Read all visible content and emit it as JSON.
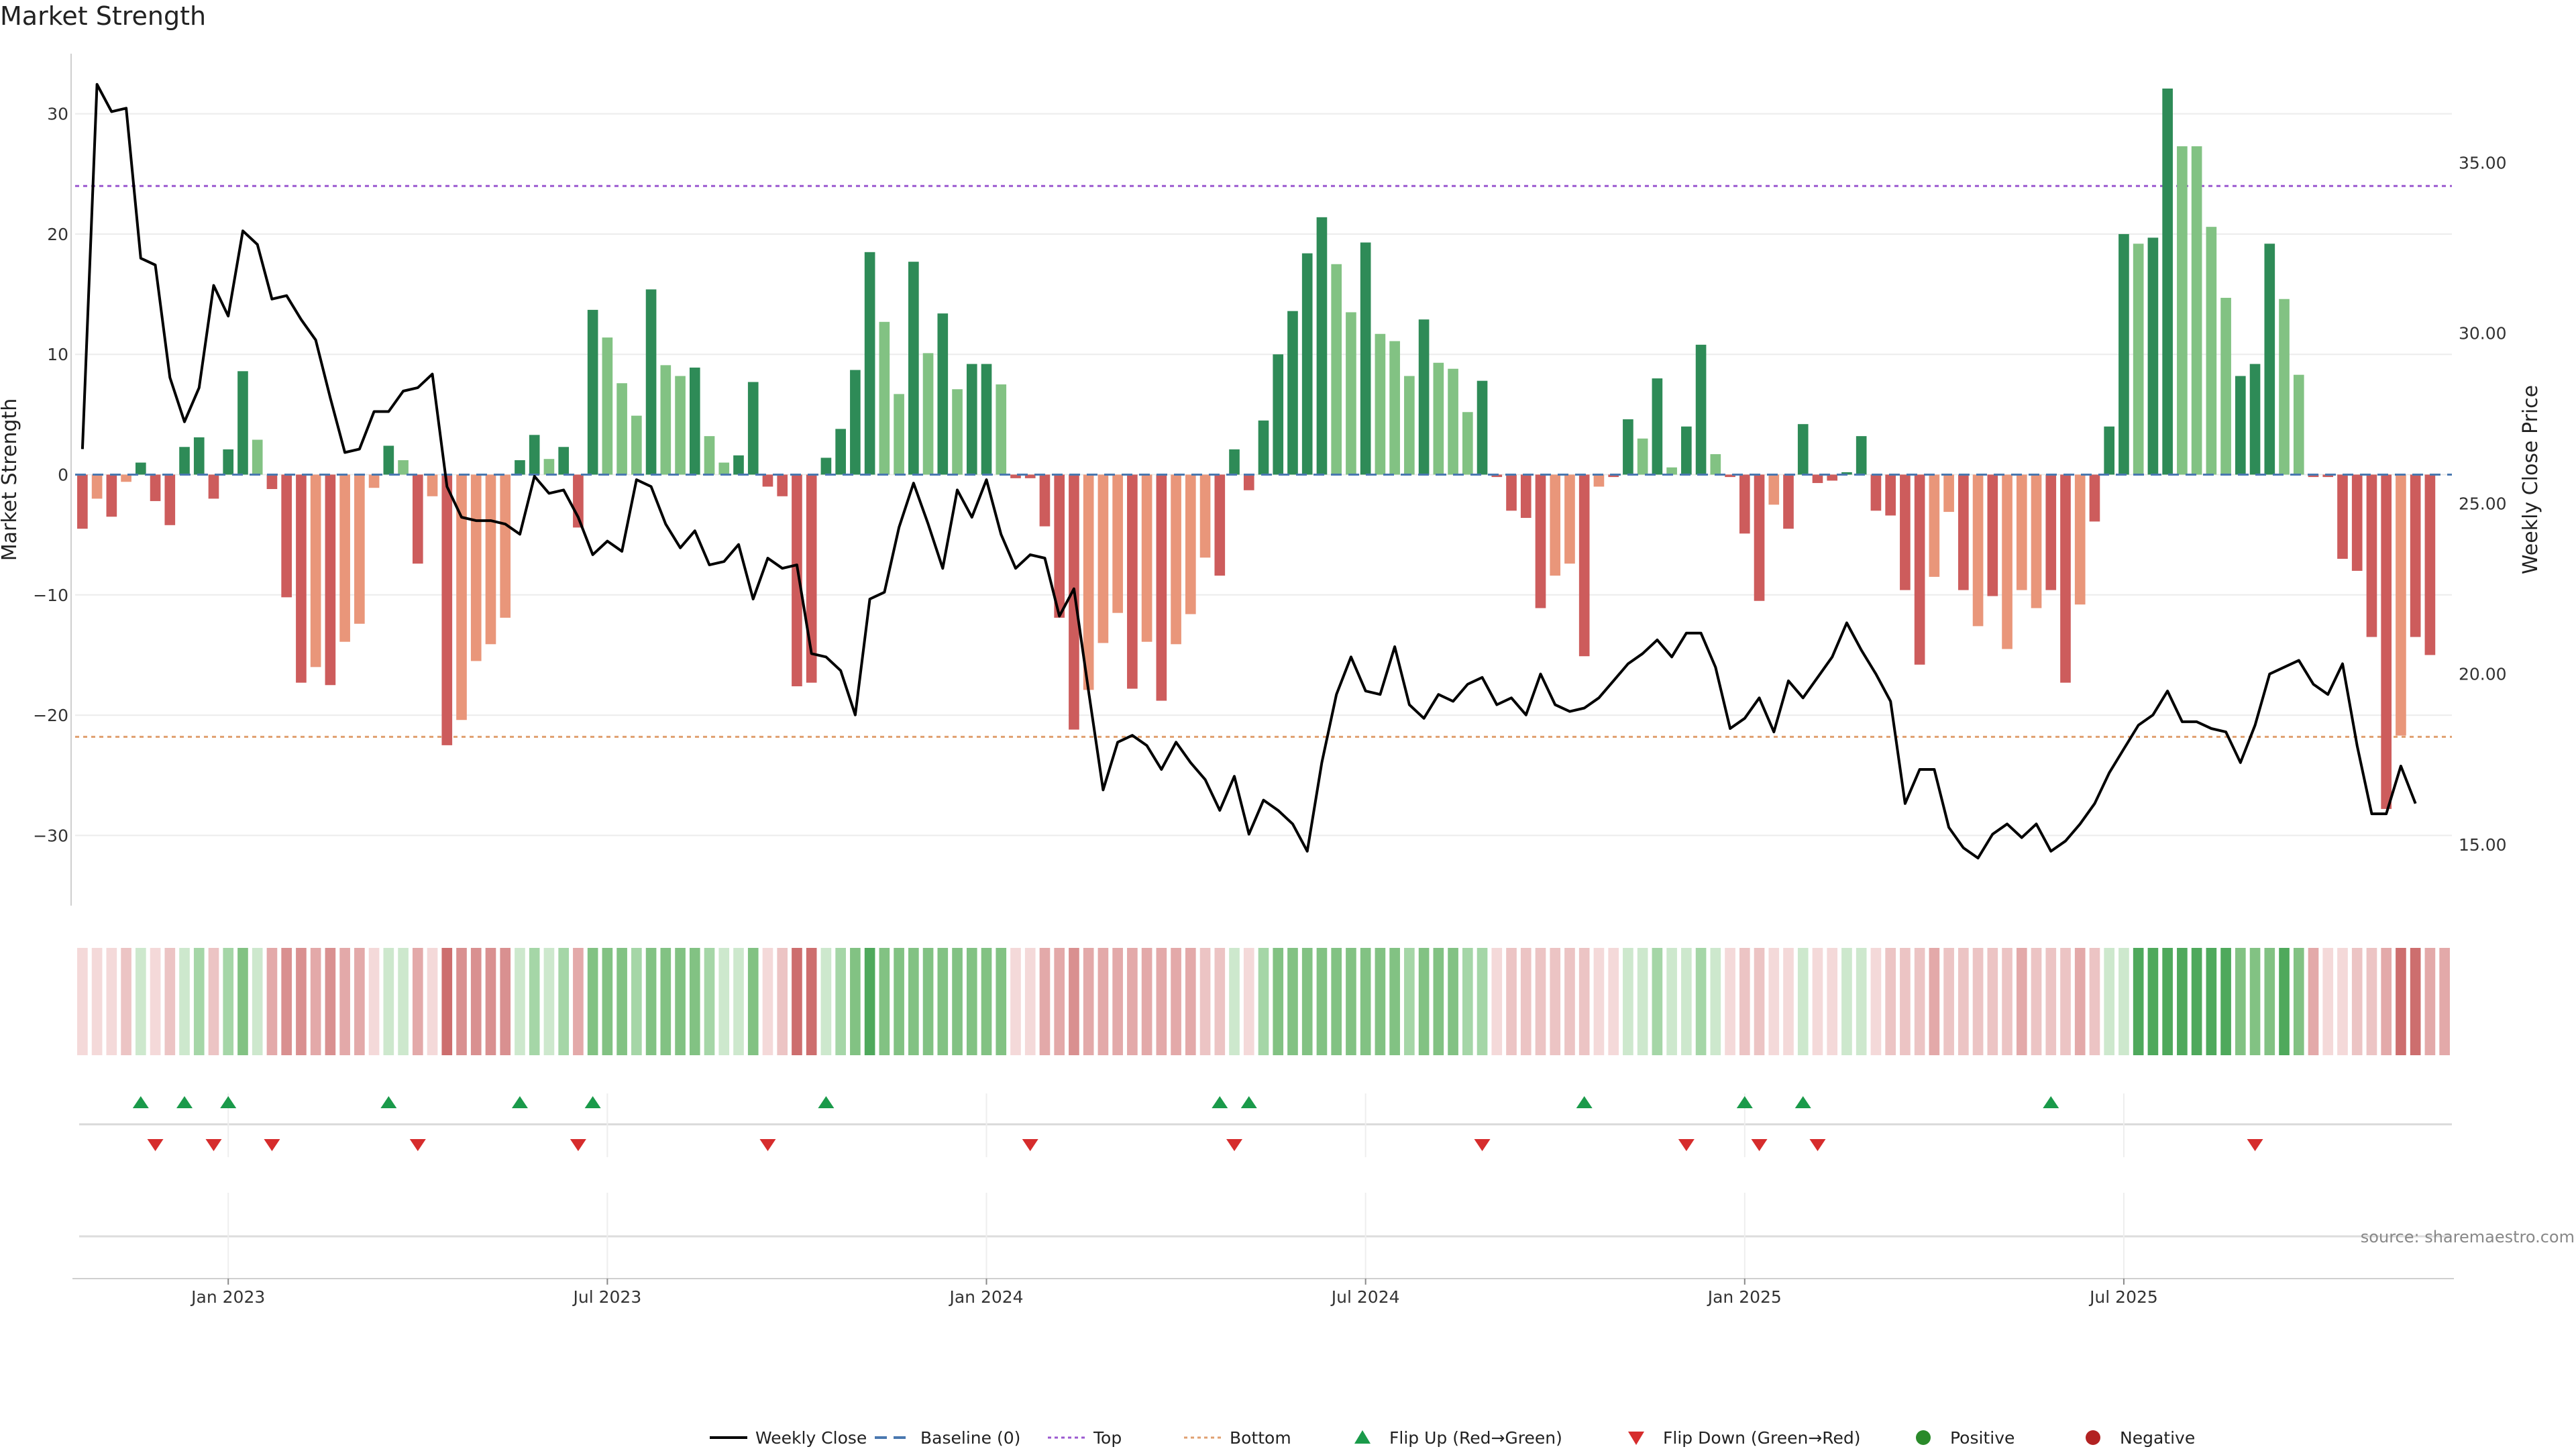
{
  "title": "Market Strength",
  "source": "source: sharemaestro.com",
  "colors": {
    "strong_green": "#2e8b57",
    "light_green": "#82c283",
    "strong_red": "#cd5c5c",
    "light_red": "#e9967a",
    "top_line": "#9b59d0",
    "bottom_line": "#e0a070",
    "baseline": "#4a78b0",
    "flip_up": "#1a9a4a",
    "flip_down": "#d62c2c",
    "positive": "#2a8a2a",
    "negative": "#b22222",
    "price_line": "#000000"
  },
  "chart_data": {
    "type": "bar",
    "title": "Market Strength",
    "ylabel": "Market Strength",
    "y2label": "Weekly Close Price",
    "ylim": [
      -35,
      35
    ],
    "y2lim": [
      13.5,
      38.2
    ],
    "yticks": [
      "30",
      "20",
      "10",
      "0",
      "−10",
      "−20",
      "−30"
    ],
    "y2ticks": [
      "35.00",
      "30.00",
      "25.00",
      "20.00",
      "15.00"
    ],
    "xticks": [
      {
        "label": "Jan 2023",
        "week": 10
      },
      {
        "label": "Jul 2023",
        "week": 36
      },
      {
        "label": "Jan 2024",
        "week": 62
      },
      {
        "label": "Jul 2024",
        "week": 88
      },
      {
        "label": "Jan 2025",
        "week": 114
      },
      {
        "label": "Jul 2025",
        "week": 140
      }
    ],
    "top_level": 24,
    "bottom_level": -21.8,
    "strength": [
      -4.5,
      -2,
      -3.5,
      -0.6,
      1,
      -2.2,
      -4.2,
      2.3,
      3.1,
      -2,
      2.1,
      8.6,
      2.9,
      -1.2,
      -10.2,
      -17.3,
      -16,
      -17.5,
      -13.9,
      -12.4,
      -1.1,
      2.4,
      1.2,
      -7.4,
      -1.8,
      -22.5,
      -20.4,
      -15.5,
      -14.1,
      -11.9,
      1.2,
      3.3,
      1.3,
      2.3,
      -4.4,
      13.7,
      11.4,
      7.6,
      4.9,
      15.4,
      9.1,
      8.2,
      8.9,
      3.2,
      1,
      1.6,
      7.7,
      -1,
      -1.8,
      -17.6,
      -17.3,
      1.4,
      3.8,
      8.7,
      18.5,
      12.7,
      6.7,
      17.7,
      10.1,
      13.4,
      7.1,
      9.2,
      9.2,
      7.5,
      -0.3,
      -0.3,
      -4.3,
      -11.9,
      -21.2,
      -17.9,
      -14,
      -11.5,
      -17.8,
      -13.9,
      -18.8,
      -14.1,
      -11.6,
      -6.9,
      -8.4,
      2.1,
      -1.3,
      4.5,
      10,
      13.6,
      18.4,
      21.4,
      17.5,
      13.5,
      19.3,
      11.7,
      11.1,
      8.2,
      12.9,
      9.3,
      8.8,
      5.2,
      7.8,
      -0.2,
      -3,
      -3.6,
      -11.1,
      -8.4,
      -7.4,
      -15.1,
      -1,
      -0.2,
      4.6,
      3,
      8,
      0.6,
      4,
      10.8,
      1.7,
      -0.2,
      -4.9,
      -10.5,
      -2.5,
      -4.5,
      4.2,
      -0.7,
      -0.5,
      0.2,
      3.2,
      -3,
      -3.4,
      -9.6,
      -15.8,
      -8.5,
      -3.1,
      -9.6,
      -12.6,
      -10.1,
      -14.5,
      -9.6,
      -11.1,
      -9.6,
      -17.3,
      -10.8,
      -3.9,
      4,
      20,
      19.2,
      19.7,
      32.1,
      27.3,
      27.3,
      20.6,
      14.7,
      8.2,
      9.2,
      19.2,
      14.6,
      8.3,
      -0.2,
      -0.2,
      -7,
      -8,
      -13.5,
      -27.8,
      -21.7,
      -13.5,
      -15
    ],
    "strength_shade": [
      "s",
      "l",
      "s",
      "l",
      "s",
      "s",
      "s",
      "s",
      "s",
      "s",
      "s",
      "s",
      "l",
      "s",
      "s",
      "s",
      "l",
      "s",
      "l",
      "l",
      "l",
      "s",
      "l",
      "s",
      "l",
      "s",
      "l",
      "l",
      "l",
      "l",
      "s",
      "s",
      "l",
      "s",
      "s",
      "s",
      "l",
      "l",
      "l",
      "s",
      "l",
      "l",
      "s",
      "l",
      "l",
      "s",
      "s",
      "s",
      "s",
      "s",
      "s",
      "s",
      "s",
      "s",
      "s",
      "l",
      "l",
      "s",
      "l",
      "s",
      "l",
      "s",
      "s",
      "l",
      "s",
      "s",
      "s",
      "s",
      "s",
      "l",
      "l",
      "l",
      "s",
      "l",
      "s",
      "l",
      "l",
      "l",
      "s",
      "s",
      "s",
      "s",
      "s",
      "s",
      "s",
      "s",
      "l",
      "l",
      "s",
      "l",
      "l",
      "l",
      "s",
      "l",
      "l",
      "l",
      "s",
      "s",
      "s",
      "s",
      "s",
      "l",
      "l",
      "s",
      "l",
      "s",
      "s",
      "l",
      "s",
      "l",
      "s",
      "s",
      "l",
      "s",
      "s",
      "s",
      "l",
      "s",
      "s",
      "s",
      "s",
      "s",
      "s",
      "s",
      "s",
      "s",
      "s",
      "l",
      "l",
      "s",
      "l",
      "s",
      "l",
      "l",
      "l",
      "s",
      "s",
      "l",
      "s",
      "s",
      "s",
      "l",
      "s",
      "s",
      "l",
      "l",
      "l",
      "l",
      "s",
      "s",
      "s",
      "l",
      "l",
      "s",
      "s",
      "s",
      "s",
      "s",
      "s",
      "l",
      "s",
      "s"
    ],
    "close": [
      26.6,
      37.3,
      36.5,
      36.6,
      32.2,
      32.0,
      28.7,
      27.4,
      28.4,
      31.4,
      30.5,
      33.0,
      32.6,
      31.0,
      31.1,
      30.4,
      29.8,
      28.1,
      26.5,
      26.6,
      27.7,
      27.7,
      28.3,
      28.4,
      28.8,
      25.5,
      24.6,
      24.5,
      24.5,
      24.4,
      24.1,
      25.8,
      25.3,
      25.4,
      24.6,
      23.5,
      23.9,
      23.6,
      25.7,
      25.5,
      24.4,
      23.7,
      24.2,
      23.2,
      23.3,
      23.8,
      22.2,
      23.4,
      23.1,
      23.2,
      20.6,
      20.5,
      20.1,
      18.8,
      22.2,
      22.4,
      24.3,
      25.6,
      24.4,
      23.1,
      25.4,
      24.6,
      25.7,
      24.1,
      23.1,
      23.5,
      23.4,
      21.7,
      22.5,
      19.5,
      16.6,
      18.0,
      18.2,
      17.9,
      17.2,
      18.0,
      17.4,
      16.9,
      16.0,
      17.0,
      15.3,
      16.3,
      16.0,
      15.6,
      14.8,
      17.4,
      19.4,
      20.5,
      19.5,
      19.4,
      20.8,
      19.1,
      18.7,
      19.4,
      19.2,
      19.7,
      19.9,
      19.1,
      19.3,
      18.8,
      20.0,
      19.1,
      18.9,
      19.0,
      19.3,
      19.8,
      20.3,
      20.6,
      21.0,
      20.5,
      21.2,
      21.2,
      20.2,
      18.4,
      18.7,
      19.3,
      18.3,
      19.8,
      19.3,
      19.9,
      20.5,
      21.5,
      20.7,
      20.0,
      19.2,
      16.2,
      17.2,
      17.2,
      15.5,
      14.9,
      14.6,
      15.3,
      15.6,
      15.2,
      15.6,
      14.8,
      15.1,
      15.6,
      16.2,
      17.1,
      17.8,
      18.5,
      18.8,
      19.5,
      18.6,
      18.6,
      18.4,
      18.3,
      17.4,
      18.5,
      20.0,
      20.2,
      20.4,
      19.7,
      19.4,
      20.3,
      17.9,
      15.9,
      15.9,
      17.3,
      16.2
    ],
    "heat_strip": [
      2,
      2,
      2,
      3,
      3,
      2,
      3,
      3,
      4,
      3,
      4,
      5,
      3,
      5,
      6,
      6,
      5,
      6,
      5,
      5,
      2,
      3,
      2,
      5,
      2,
      7,
      6,
      6,
      6,
      6,
      3,
      4,
      3,
      4,
      5,
      6,
      6,
      5,
      4,
      6,
      5,
      5,
      5,
      4,
      3,
      3,
      5,
      2,
      3,
      7,
      7,
      3,
      4,
      5,
      7,
      6,
      5,
      6,
      5,
      6,
      5,
      5,
      5,
      5,
      2,
      2,
      5,
      5,
      6,
      5,
      5,
      5,
      5,
      5,
      5,
      5,
      5,
      4,
      4,
      3,
      2,
      4,
      5,
      5,
      6,
      6,
      6,
      5,
      6,
      5,
      5,
      4,
      5,
      5,
      5,
      4,
      4,
      2,
      3,
      3,
      4,
      3,
      3,
      4,
      2,
      2,
      3,
      3,
      4,
      2,
      3,
      4,
      2,
      2,
      3,
      4,
      2,
      2,
      3,
      2,
      2,
      2,
      3,
      2,
      3,
      3,
      4,
      5,
      4,
      3,
      4,
      4,
      4,
      5,
      4,
      4,
      4,
      5,
      4,
      3,
      3,
      7,
      7,
      7,
      8,
      8,
      7,
      7,
      6,
      5,
      5,
      7,
      6,
      5,
      2,
      2,
      4,
      4,
      5,
      7,
      7,
      5,
      5
    ],
    "flip_up_weeks": [
      4,
      7,
      10,
      21,
      30,
      35,
      51,
      78,
      80,
      103,
      114,
      118,
      135
    ],
    "flip_down_weeks": [
      5,
      9,
      13,
      23,
      34,
      47,
      65,
      79,
      96,
      110,
      115,
      119,
      149
    ],
    "weeks": 163,
    "legend": [
      {
        "label": "Weekly Close",
        "kind": "line"
      },
      {
        "label": "Baseline (0)",
        "kind": "dash"
      },
      {
        "label": "Top",
        "kind": "dot-purple"
      },
      {
        "label": "Bottom",
        "kind": "dot-orange"
      },
      {
        "label": "Flip Up (Red→Green)",
        "kind": "tri-up"
      },
      {
        "label": "Flip Down (Green→Red)",
        "kind": "tri-down"
      },
      {
        "label": "Positive",
        "kind": "dot-green"
      },
      {
        "label": "Negative",
        "kind": "dot-red"
      }
    ]
  }
}
